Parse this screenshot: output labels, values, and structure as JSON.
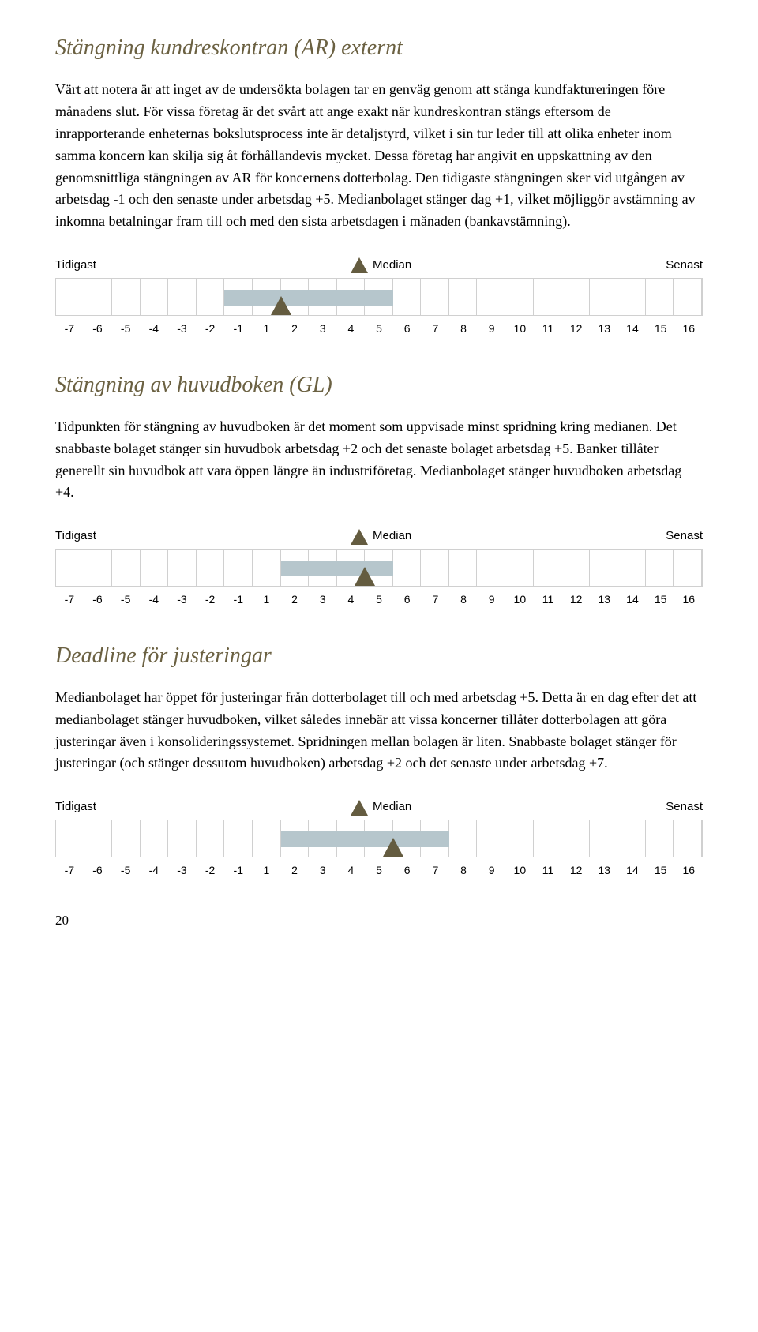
{
  "sections": [
    {
      "title": "Stängning kundreskontran (AR) externt",
      "body": "Värt att notera är att inget av de undersökta bolagen tar en genväg genom att stänga kundfaktureringen före månadens slut. För vissa företag är det svårt att ange exakt när kundreskontran stängs eftersom de inrapporterande enheternas bokslutsprocess inte är detaljstyrd, vilket i sin tur leder till att olika enheter inom samma koncern kan skilja sig åt förhållandevis mycket. Dessa företag har angivit en uppskattning av den genomsnittliga stängningen av AR för koncernens dotterbolag. Den tidigaste stängningen sker vid utgången av arbetsdag -1 och den senaste under arbetsdag +5. Medianbolaget stänger dag +1, vilket möjliggör avstämning av inkomna betalningar fram till och med den sista arbetsdagen i månaden (bankavstämning).",
      "chart": {
        "type": "timeline",
        "label_left": "Tidigast",
        "label_mid": "Median",
        "label_right": "Senast",
        "ticks": [
          "-7",
          "-6",
          "-5",
          "-4",
          "-3",
          "-2",
          "-1",
          "1",
          "2",
          "3",
          "4",
          "5",
          "6",
          "7",
          "8",
          "9",
          "10",
          "11",
          "12",
          "13",
          "14",
          "15",
          "16"
        ],
        "band_start_idx": 6,
        "band_end_idx": 11,
        "marker_idx": 7,
        "marker_align": "right",
        "band_color": "#b6c6cc",
        "marker_color": "#645c40",
        "grid_color": "#d0d0d0"
      }
    },
    {
      "title": "Stängning av huvudboken (GL)",
      "body": "Tidpunkten för stängning av huvudboken är det moment som uppvisade minst spridning kring medianen. Det snabbaste bolaget stänger sin huvudbok arbetsdag +2 och det senaste bolaget arbetsdag +5. Banker tillåter generellt sin huvudbok att vara öppen längre än industriföretag. Medianbolaget stänger huvudboken arbetsdag +4.",
      "chart": {
        "type": "timeline",
        "label_left": "Tidigast",
        "label_mid": "Median",
        "label_right": "Senast",
        "ticks": [
          "-7",
          "-6",
          "-5",
          "-4",
          "-3",
          "-2",
          "-1",
          "1",
          "2",
          "3",
          "4",
          "5",
          "6",
          "7",
          "8",
          "9",
          "10",
          "11",
          "12",
          "13",
          "14",
          "15",
          "16"
        ],
        "band_start_idx": 8,
        "band_end_idx": 11,
        "marker_idx": 10,
        "marker_align": "right",
        "band_color": "#b6c6cc",
        "marker_color": "#645c40",
        "grid_color": "#d0d0d0"
      }
    },
    {
      "title": "Deadline för justeringar",
      "body": "Medianbolaget har öppet för justeringar från dotterbolaget till och med arbetsdag +5. Detta är en dag efter det att medianbolaget stänger huvudboken, vilket således innebär att vissa koncerner tillåter dotterbolagen att göra justeringar även i konsolideringssystemet. Spridningen mellan bolagen är liten. Snabbaste bolaget stänger för justeringar (och stänger dessutom huvudboken) arbetsdag +2 och det senaste under arbetsdag +7.",
      "chart": {
        "type": "timeline",
        "label_left": "Tidigast",
        "label_mid": "Median",
        "label_right": "Senast",
        "ticks": [
          "-7",
          "-6",
          "-5",
          "-4",
          "-3",
          "-2",
          "-1",
          "1",
          "2",
          "3",
          "4",
          "5",
          "6",
          "7",
          "8",
          "9",
          "10",
          "11",
          "12",
          "13",
          "14",
          "15",
          "16"
        ],
        "band_start_idx": 8,
        "band_end_idx": 13,
        "marker_idx": 11,
        "marker_align": "right",
        "band_color": "#b6c6cc",
        "marker_color": "#645c40",
        "grid_color": "#d0d0d0"
      }
    }
  ],
  "page_number": "20"
}
